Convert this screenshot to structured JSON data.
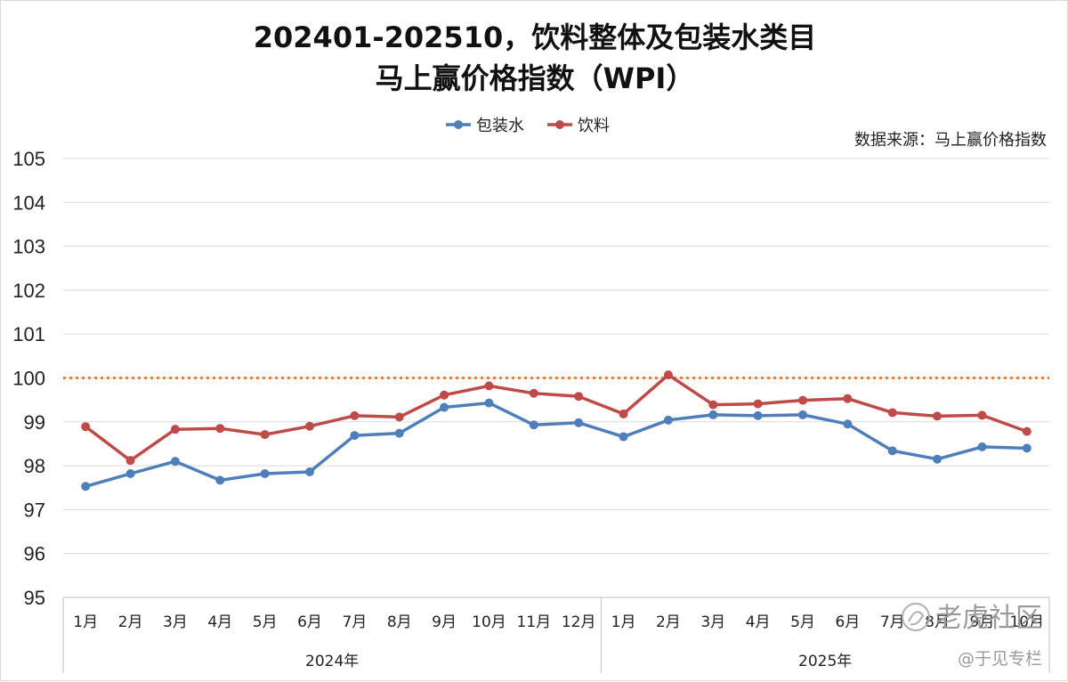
{
  "chart_data": {
    "type": "line",
    "title": [
      "202401-202510，饮料整体及包装水类目",
      "马上赢价格指数（WPI）"
    ],
    "source": "数据来源：马上赢价格指数",
    "categories": [
      "1月",
      "2月",
      "3月",
      "4月",
      "5月",
      "6月",
      "7月",
      "8月",
      "9月",
      "10月",
      "11月",
      "12月",
      "1月",
      "2月",
      "3月",
      "4月",
      "5月",
      "6月",
      "7月",
      "8月",
      "9月",
      "10月"
    ],
    "year_groups": [
      {
        "label": "2024年",
        "count": 12
      },
      {
        "label": "2025年",
        "count": 10
      }
    ],
    "series": [
      {
        "name": "包装水",
        "color": "#4f7fba",
        "values": [
          97.53,
          97.82,
          98.1,
          97.67,
          97.82,
          97.86,
          98.69,
          98.74,
          99.33,
          99.43,
          98.93,
          98.98,
          98.66,
          99.04,
          99.16,
          99.14,
          99.16,
          98.95,
          98.34,
          98.15,
          98.43,
          98.4
        ]
      },
      {
        "name": "饮料",
        "color": "#be4b48",
        "values": [
          98.89,
          98.12,
          98.83,
          98.85,
          98.71,
          98.9,
          99.14,
          99.11,
          99.61,
          99.82,
          99.65,
          99.58,
          99.18,
          100.07,
          99.39,
          99.41,
          99.49,
          99.53,
          99.21,
          99.13,
          99.15,
          98.78
        ]
      }
    ],
    "reference_line": {
      "value": 100,
      "color": "#ed7d31",
      "style": "dotted"
    },
    "ylim": [
      95,
      105
    ],
    "yticks": [
      95,
      96,
      97,
      98,
      99,
      100,
      101,
      102,
      103,
      104,
      105
    ],
    "grid": true,
    "legend_position": "top-center"
  },
  "watermark": {
    "community": "老虎社区",
    "author": "@于见专栏"
  }
}
